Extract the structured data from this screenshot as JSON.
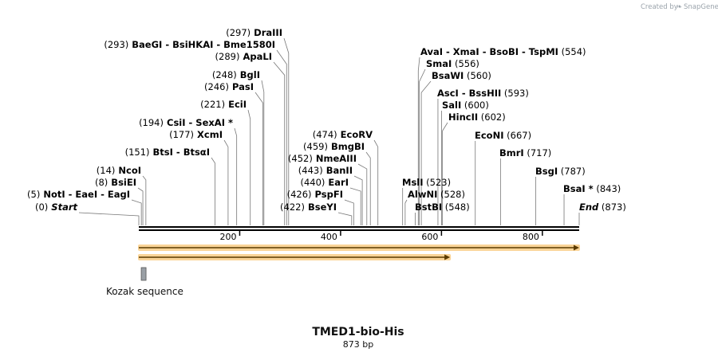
{
  "credit": {
    "prefix": "Created by",
    "brand": "SnapGene"
  },
  "sequence": {
    "name": "TMED1-bio-His",
    "length_label": "873 bp",
    "length": 873
  },
  "ticks": [
    {
      "pos": 200,
      "label": "200"
    },
    {
      "pos": 400,
      "label": "400"
    },
    {
      "pos": 600,
      "label": "600"
    },
    {
      "pos": 800,
      "label": "800"
    }
  ],
  "left_sites": [
    {
      "id": "start",
      "text": [
        {
          "t": "(0)",
          "s": "num"
        },
        {
          "t": "  Start",
          "s": "italic"
        }
      ],
      "pos": 0
    },
    {
      "id": "noti",
      "text": [
        {
          "t": "(5)",
          "s": "num"
        },
        {
          "t": "  NotI  -  EaeI  -  EagI",
          "s": "name"
        }
      ],
      "pos": 5
    },
    {
      "id": "bsiei",
      "text": [
        {
          "t": "(8)",
          "s": "num"
        },
        {
          "t": "  BsiEI",
          "s": "name"
        }
      ],
      "pos": 8
    },
    {
      "id": "ncoi",
      "text": [
        {
          "t": "(14)",
          "s": "num"
        },
        {
          "t": "  NcoI",
          "s": "name"
        }
      ],
      "pos": 14
    },
    {
      "id": "btsi",
      "text": [
        {
          "t": "(151)",
          "s": "num"
        },
        {
          "t": "  BtsI  -  BtsαI",
          "s": "name"
        }
      ],
      "pos": 151
    },
    {
      "id": "xcmi",
      "text": [
        {
          "t": "(177)",
          "s": "num"
        },
        {
          "t": "  XcmI",
          "s": "name"
        }
      ],
      "pos": 177
    },
    {
      "id": "csii",
      "text": [
        {
          "t": "(194)",
          "s": "num"
        },
        {
          "t": "  CsiI  -  SexAI *",
          "s": "name"
        }
      ],
      "pos": 194
    },
    {
      "id": "ecii",
      "text": [
        {
          "t": "(221)",
          "s": "num"
        },
        {
          "t": "  EciI",
          "s": "name"
        }
      ],
      "pos": 221
    },
    {
      "id": "pasi",
      "text": [
        {
          "t": "(246)",
          "s": "num"
        },
        {
          "t": "  PasI",
          "s": "name"
        }
      ],
      "pos": 246
    },
    {
      "id": "bgli",
      "text": [
        {
          "t": "(248)",
          "s": "num"
        },
        {
          "t": "  BglI",
          "s": "name"
        }
      ],
      "pos": 248
    },
    {
      "id": "apali",
      "text": [
        {
          "t": "(289)",
          "s": "num"
        },
        {
          "t": "  ApaLI",
          "s": "name"
        }
      ],
      "pos": 289
    },
    {
      "id": "baegi",
      "text": [
        {
          "t": "(293)",
          "s": "num"
        },
        {
          "t": "  BaeGI  -  BsiHKAI  -  Bme1580I",
          "s": "name"
        }
      ],
      "pos": 293
    },
    {
      "id": "draiii",
      "text": [
        {
          "t": "(297)",
          "s": "num"
        },
        {
          "t": "  DraIII",
          "s": "name"
        }
      ],
      "pos": 297
    }
  ],
  "mid_sites": [
    {
      "id": "bseyi",
      "text": [
        {
          "t": "(422)",
          "s": "num"
        },
        {
          "t": "  BseYI",
          "s": "name"
        }
      ],
      "pos": 422
    },
    {
      "id": "pspfi",
      "text": [
        {
          "t": "(426)",
          "s": "num"
        },
        {
          "t": "  PspFI",
          "s": "name"
        }
      ],
      "pos": 426
    },
    {
      "id": "eari",
      "text": [
        {
          "t": "(440)",
          "s": "num"
        },
        {
          "t": "  EarI",
          "s": "name"
        }
      ],
      "pos": 440
    },
    {
      "id": "banii",
      "text": [
        {
          "t": "(443)",
          "s": "num"
        },
        {
          "t": "  BanII",
          "s": "name"
        }
      ],
      "pos": 443
    },
    {
      "id": "nmeaiii",
      "text": [
        {
          "t": "(452)",
          "s": "num"
        },
        {
          "t": "  NmeAIII",
          "s": "name"
        }
      ],
      "pos": 452
    },
    {
      "id": "bmgbi",
      "text": [
        {
          "t": "(459)",
          "s": "num"
        },
        {
          "t": "  BmgBI",
          "s": "name"
        }
      ],
      "pos": 459
    },
    {
      "id": "ecorv",
      "text": [
        {
          "t": "(474)",
          "s": "num"
        },
        {
          "t": "  EcoRV",
          "s": "name"
        }
      ],
      "pos": 474
    }
  ],
  "right_sites": [
    {
      "id": "msli",
      "text": [
        {
          "t": "MslI",
          "s": "name"
        },
        {
          "t": "   (523)",
          "s": "num"
        }
      ],
      "pos": 523
    },
    {
      "id": "alwni",
      "text": [
        {
          "t": "AlwNI",
          "s": "name"
        },
        {
          "t": "   (528)",
          "s": "num"
        }
      ],
      "pos": 528
    },
    {
      "id": "bstbi",
      "text": [
        {
          "t": "BstBI",
          "s": "name"
        },
        {
          "t": "   (548)",
          "s": "num"
        }
      ],
      "pos": 548
    },
    {
      "id": "avai",
      "text": [
        {
          "t": "AvaI  -  XmaI  -  BsoBI  -  TspMI",
          "s": "name"
        },
        {
          "t": "   (554)",
          "s": "num"
        }
      ],
      "pos": 554
    },
    {
      "id": "smai",
      "text": [
        {
          "t": "SmaI",
          "s": "name"
        },
        {
          "t": "   (556)",
          "s": "num"
        }
      ],
      "pos": 556
    },
    {
      "id": "bsawi",
      "text": [
        {
          "t": "BsaWI",
          "s": "name"
        },
        {
          "t": "   (560)",
          "s": "num"
        }
      ],
      "pos": 560
    },
    {
      "id": "asci",
      "text": [
        {
          "t": "AscI  -  BssHII",
          "s": "name"
        },
        {
          "t": "   (593)",
          "s": "num"
        }
      ],
      "pos": 593
    },
    {
      "id": "sali",
      "text": [
        {
          "t": "SalI",
          "s": "name"
        },
        {
          "t": "   (600)",
          "s": "num"
        }
      ],
      "pos": 600
    },
    {
      "id": "hincii",
      "text": [
        {
          "t": "HincII",
          "s": "name"
        },
        {
          "t": "   (602)",
          "s": "num"
        }
      ],
      "pos": 602
    },
    {
      "id": "econi",
      "text": [
        {
          "t": "EcoNI",
          "s": "name"
        },
        {
          "t": "   (667)",
          "s": "num"
        }
      ],
      "pos": 667
    },
    {
      "id": "bmri",
      "text": [
        {
          "t": "BmrI",
          "s": "name"
        },
        {
          "t": "   (717)",
          "s": "num"
        }
      ],
      "pos": 717
    },
    {
      "id": "bsgi",
      "text": [
        {
          "t": "BsgI",
          "s": "name"
        },
        {
          "t": "   (787)",
          "s": "num"
        }
      ],
      "pos": 787
    },
    {
      "id": "bsai",
      "text": [
        {
          "t": "BsaI *",
          "s": "name"
        },
        {
          "t": "   (843)",
          "s": "num"
        }
      ],
      "pos": 843
    },
    {
      "id": "end",
      "text": [
        {
          "t": "End",
          "s": "italic"
        },
        {
          "t": "   (873)",
          "s": "num"
        }
      ],
      "pos": 873
    }
  ],
  "features": [
    {
      "id": "orf-long",
      "start": 0,
      "end": 873,
      "color": "#f5b041",
      "direction": "forward"
    },
    {
      "id": "orf-short",
      "start": 0,
      "end": 617,
      "color": "#f5b041",
      "direction": "forward"
    }
  ],
  "kozak": {
    "label": "Kozak sequence",
    "start": 8,
    "end": 14,
    "color": "#9aa0a6"
  }
}
